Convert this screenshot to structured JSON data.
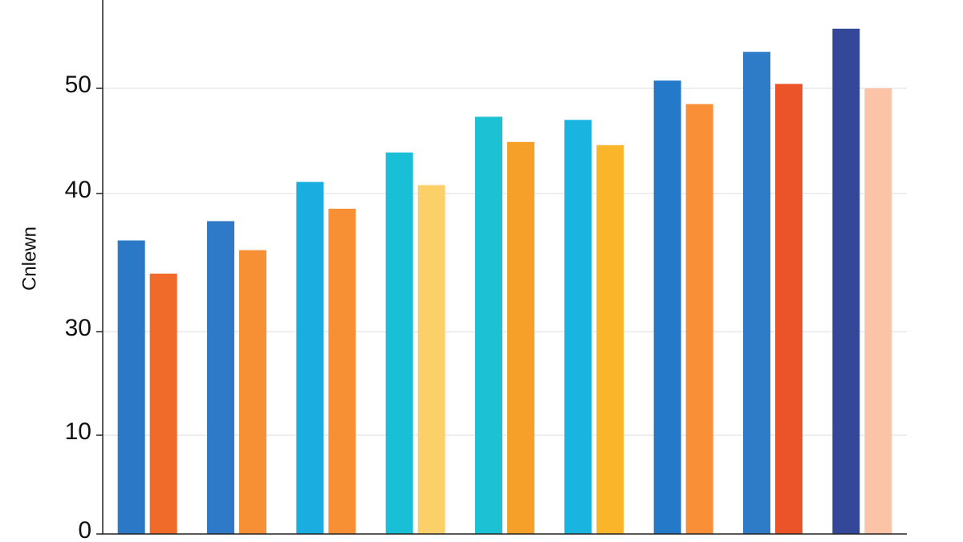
{
  "chart_data": {
    "type": "bar",
    "y_label": "Cnlewn",
    "series": [
      {
        "colors": [
          "#2a78c6",
          "#2f7ac8",
          "#1aaee0",
          "#19bfd6",
          "#1cc1d3",
          "#19b5e0",
          "#2479c9",
          "#2e7cc8",
          "#34489a"
        ],
        "values": [
          36.6,
          38.0,
          41.1,
          43.9,
          47.3,
          47.0,
          50.7,
          53.3,
          55.4
        ]
      },
      {
        "colors": [
          "#f06a2a",
          "#f78f35",
          "#f78f35",
          "#fbd068",
          "#f6a02a",
          "#fbb52a",
          "#f98f37",
          "#ea5428",
          "#fcc4a6"
        ],
        "values": [
          34.2,
          35.9,
          38.9,
          40.8,
          44.9,
          44.6,
          48.5,
          50.4,
          50.0
        ]
      }
    ],
    "ylim": [
      0,
      58
    ],
    "yticks": [
      0,
      10,
      30,
      40,
      50
    ],
    "grid": true
  }
}
